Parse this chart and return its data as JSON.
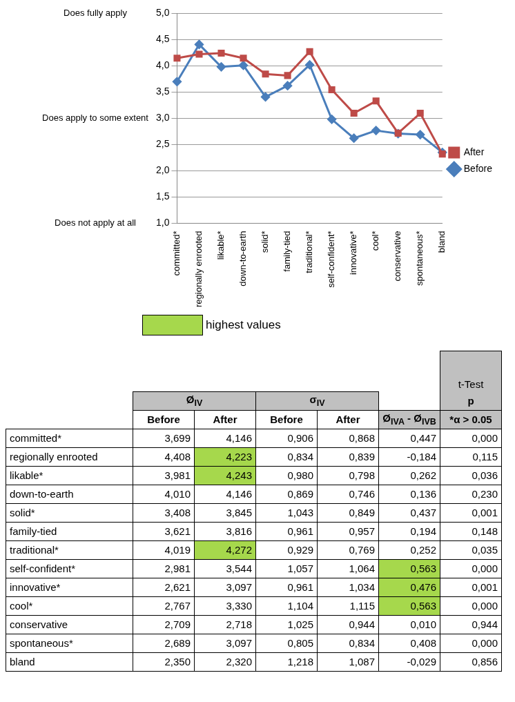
{
  "chart_data": [
    {
      "type": "line",
      "categories": [
        "committed*",
        "regionally enrooted",
        "likable*",
        "down-to-earth",
        "solid*",
        "family-tied",
        "traditional*",
        "self-confident*",
        "innovative*",
        "cool*",
        "conservative",
        "spontaneous*",
        "bland"
      ],
      "series": [
        {
          "name": "Before",
          "color": "#4a7ebb",
          "marker": "diamond",
          "values": [
            3.699,
            4.408,
            3.981,
            4.01,
            3.408,
            3.621,
            4.019,
            2.981,
            2.621,
            2.767,
            2.709,
            2.689,
            2.35
          ]
        },
        {
          "name": "After",
          "color": "#be4b48",
          "marker": "square",
          "values": [
            4.146,
            4.223,
            4.243,
            4.146,
            3.845,
            3.816,
            4.272,
            3.544,
            3.097,
            3.33,
            2.718,
            3.097,
            2.32
          ]
        }
      ],
      "ylim": [
        1,
        5
      ],
      "yticks": [
        {
          "value": 1,
          "label": "1,0"
        },
        {
          "value": 1.5,
          "label": "1,5"
        },
        {
          "value": 2,
          "label": "2,0"
        },
        {
          "value": 2.5,
          "label": "2,5"
        },
        {
          "value": 3,
          "label": "3,0"
        },
        {
          "value": 3.5,
          "label": "3,5"
        },
        {
          "value": 4,
          "label": "4,0"
        },
        {
          "value": 4.5,
          "label": "4,5"
        },
        {
          "value": 5,
          "label": "5,0"
        }
      ],
      "grid": "y",
      "legend": "right",
      "line_style": "solid",
      "annotations": [
        "Does fully apply",
        "Does apply to some extent",
        "Does not apply at all"
      ]
    },
    {
      "type": "heatmap",
      "legend_title": "highest values",
      "categories": [
        "Before",
        "After",
        "Before",
        "After",
        "Ø$_{IVA}$ - Ø$_{IVB}$",
        "*α > 0.05"
      ],
      "y_categories": [
        "committed*",
        "regionally enrooted",
        "likable*",
        "down-to-earth",
        "solid*",
        "family-tied",
        "traditional*",
        "self-confident*",
        "innovative*",
        "cool*",
        "conservative",
        "spontaneous*",
        "bland"
      ],
      "annotations": [
        "Ø$_{IV}$",
        "σ$_{IV}$",
        "t-Test",
        "p"
      ],
      "cells": [
        [
          3.699,
          4.146,
          0.906,
          0.868,
          0.447,
          0
        ],
        [
          4.408,
          4.223,
          0.834,
          0.839,
          -0.184,
          0.115
        ],
        [
          3.981,
          4.243,
          0.98,
          0.798,
          0.262,
          0.036
        ],
        [
          4.01,
          4.146,
          0.869,
          0.746,
          0.136,
          0.23
        ],
        [
          3.408,
          3.845,
          1.043,
          0.849,
          0.437,
          0.001
        ],
        [
          3.621,
          3.816,
          0.961,
          0.957,
          0.194,
          0.148
        ],
        [
          4.019,
          4.272,
          0.929,
          0.769,
          0.252,
          0.035
        ],
        [
          2.981,
          3.544,
          1.057,
          1.064,
          0.563,
          0
        ],
        [
          2.621,
          3.097,
          0.961,
          1.034,
          0.476,
          0.001
        ],
        [
          2.767,
          3.33,
          1.104,
          1.115,
          0.563,
          0
        ],
        [
          2.709,
          2.718,
          1.025,
          0.944,
          0.01,
          0.944
        ],
        [
          2.689,
          3.097,
          0.805,
          0.834,
          0.408,
          0
        ],
        [
          2.35,
          2.32,
          1.218,
          1.087,
          -0.029,
          0.856
        ]
      ],
      "cell_labels": [
        [
          "3,699",
          "4,146",
          "0,906",
          "0,868",
          "0,447",
          "0,000"
        ],
        [
          "4,408",
          "4,223",
          "0,834",
          "0,839",
          "-0,184",
          "0,115"
        ],
        [
          "3,981",
          "4,243",
          "0,980",
          "0,798",
          "0,262",
          "0,036"
        ],
        [
          "4,010",
          "4,146",
          "0,869",
          "0,746",
          "0,136",
          "0,230"
        ],
        [
          "3,408",
          "3,845",
          "1,043",
          "0,849",
          "0,437",
          "0,001"
        ],
        [
          "3,621",
          "3,816",
          "0,961",
          "0,957",
          "0,194",
          "0,148"
        ],
        [
          "4,019",
          "4,272",
          "0,929",
          "0,769",
          "0,252",
          "0,035"
        ],
        [
          "2,981",
          "3,544",
          "1,057",
          "1,064",
          "0,563",
          "0,000"
        ],
        [
          "2,621",
          "3,097",
          "0,961",
          "1,034",
          "0,476",
          "0,001"
        ],
        [
          "2,767",
          "3,330",
          "1,104",
          "1,115",
          "0,563",
          "0,000"
        ],
        [
          "2,709",
          "2,718",
          "1,025",
          "0,944",
          "0,010",
          "0,944"
        ],
        [
          "2,689",
          "3,097",
          "0,805",
          "0,834",
          "0,408",
          "0,000"
        ],
        [
          "2,350",
          "2,320",
          "1,218",
          "1,087",
          "-0,029",
          "0,856"
        ]
      ],
      "colors": [
        [
          null,
          null,
          null,
          null,
          null,
          null
        ],
        [
          null,
          "#a6d84c",
          null,
          null,
          null,
          null
        ],
        [
          null,
          "#a6d84c",
          null,
          null,
          null,
          null
        ],
        [
          null,
          null,
          null,
          null,
          null,
          null
        ],
        [
          null,
          null,
          null,
          null,
          null,
          null
        ],
        [
          null,
          null,
          null,
          null,
          null,
          null
        ],
        [
          null,
          "#a6d84c",
          null,
          null,
          null,
          null
        ],
        [
          null,
          null,
          null,
          null,
          "#a6d84c",
          null
        ],
        [
          null,
          null,
          null,
          null,
          "#a6d84c",
          null
        ],
        [
          null,
          null,
          null,
          null,
          "#a6d84c",
          null
        ],
        [
          null,
          null,
          null,
          null,
          null,
          null
        ],
        [
          null,
          null,
          null,
          null,
          null,
          null
        ],
        [
          null,
          null,
          null,
          null,
          null,
          null
        ]
      ]
    }
  ]
}
